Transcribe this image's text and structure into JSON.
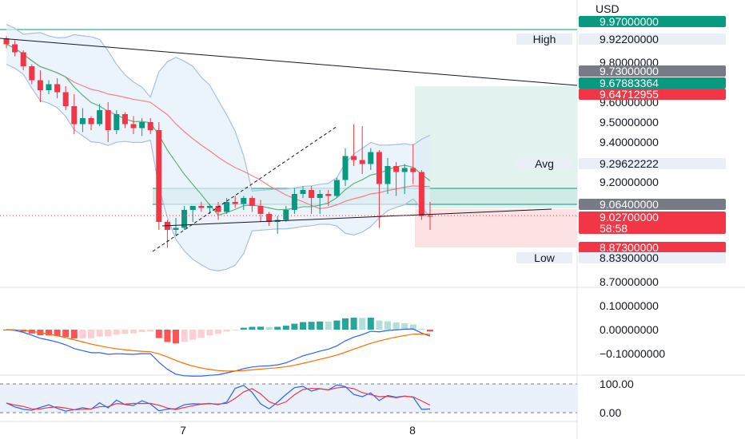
{
  "axis": {
    "currency": "USD",
    "price_ticks": [
      "9.80000000",
      "9.60000000",
      "9.50000000",
      "9.40000000",
      "9.20000000",
      "8.70000000"
    ],
    "price_tick_values": [
      9.8,
      9.6,
      9.5,
      9.4,
      9.2,
      8.7
    ],
    "macd_ticks": [
      "0.10000000",
      "0.00000000",
      "−0.10000000"
    ],
    "macd_tick_values": [
      0.1,
      0.0,
      -0.1
    ],
    "stoch_ticks": [
      "100.00",
      "0.00"
    ],
    "stoch_tick_values": [
      100,
      0
    ],
    "time_ticks": [
      "7",
      "8"
    ]
  },
  "price_labels": [
    {
      "id": "top",
      "value": 9.97,
      "text": "9.97000000",
      "color": "#089981",
      "text_color": "#ffffff"
    },
    {
      "id": "high",
      "value": 9.922,
      "text": "9.92200000",
      "tag": "High",
      "color": "#e9eef7",
      "text_color": "#131722"
    },
    {
      "id": "grey1",
      "value": 9.73,
      "text": "9.73000000",
      "color": "#787b86",
      "text_color": "#ffffff"
    },
    {
      "id": "green",
      "value": 9.67883364,
      "text": "9.67883364",
      "color": "#089981",
      "text_color": "#ffffff"
    },
    {
      "id": "red1",
      "value": 9.64712955,
      "text": "9.64712955",
      "color": "#f23645",
      "text_color": "#ffffff"
    },
    {
      "id": "avg",
      "value": 9.29622222,
      "text": "9.29622222",
      "tag": "Avg",
      "color": "#e9eef7",
      "text_color": "#131722"
    },
    {
      "id": "grey2",
      "value": 9.064,
      "text": "9.06400000",
      "color": "#787b86",
      "text_color": "#ffffff"
    },
    {
      "id": "current",
      "value": 9.027,
      "text": "9.02700000",
      "sub": "58:58",
      "color": "#f23645",
      "text_color": "#ffffff"
    },
    {
      "id": "red2",
      "value": 8.873,
      "text": "8.87300000",
      "color": "#f23645",
      "text_color": "#ffffff"
    },
    {
      "id": "low",
      "value": 8.839,
      "text": "8.83900000",
      "tag": "Low",
      "color": "#e9eef7",
      "text_color": "#131722"
    }
  ],
  "colors": {
    "up": "#089981",
    "down": "#f23645",
    "band_fill": "#e3eef9",
    "band_line": "#a7bfe3",
    "ma_red": "#f5808a",
    "ma_green": "#5db37e",
    "macd_line": "#2962ff",
    "signal_line": "#ff6d00",
    "hist_up_strong": "#26a69a",
    "hist_up_weak": "#b2dfdb",
    "hist_dn_strong": "#ff5252",
    "hist_dn_weak": "#ffcdd2",
    "stoch_k": "#2962ff",
    "stoch_d": "#f23645",
    "stoch_band": "#eaf1fb",
    "grid": "#e0e3eb"
  },
  "chart_data": {
    "type": "candlestick",
    "ohlc": [
      [
        9.92,
        9.93,
        9.87,
        9.89
      ],
      [
        9.89,
        9.91,
        9.83,
        9.85
      ],
      [
        9.85,
        9.86,
        9.76,
        9.78
      ],
      [
        9.78,
        9.79,
        9.69,
        9.71
      ],
      [
        9.71,
        9.76,
        9.6,
        9.66
      ],
      [
        9.66,
        9.71,
        9.64,
        9.69
      ],
      [
        9.69,
        9.72,
        9.62,
        9.65
      ],
      [
        9.65,
        9.68,
        9.56,
        9.58
      ],
      [
        9.58,
        9.64,
        9.44,
        9.49
      ],
      [
        9.49,
        9.57,
        9.45,
        9.52
      ],
      [
        9.52,
        9.53,
        9.46,
        9.49
      ],
      [
        9.49,
        9.59,
        9.48,
        9.56
      ],
      [
        9.56,
        9.6,
        9.4,
        9.46
      ],
      [
        9.46,
        9.56,
        9.44,
        9.54
      ],
      [
        9.54,
        9.55,
        9.47,
        9.49
      ],
      [
        9.49,
        9.53,
        9.44,
        9.47
      ],
      [
        9.47,
        9.52,
        9.43,
        9.5
      ],
      [
        9.5,
        9.52,
        9.44,
        9.46
      ],
      [
        9.46,
        9.5,
        8.96,
        9.0
      ],
      [
        9.0,
        9.01,
        8.87,
        8.96
      ],
      [
        8.96,
        9.02,
        8.93,
        8.97
      ],
      [
        8.97,
        9.08,
        8.96,
        9.06
      ],
      [
        9.06,
        9.08,
        9.0,
        9.08
      ],
      [
        9.08,
        9.1,
        9.05,
        9.07
      ],
      [
        9.07,
        9.09,
        9.04,
        9.08
      ],
      [
        9.08,
        9.1,
        9.01,
        9.05
      ],
      [
        9.05,
        9.12,
        9.04,
        9.1
      ],
      [
        9.1,
        9.13,
        9.07,
        9.09
      ],
      [
        9.09,
        9.13,
        9.06,
        9.12
      ],
      [
        9.12,
        9.13,
        9.05,
        9.08
      ],
      [
        9.08,
        9.11,
        9.0,
        9.04
      ],
      [
        9.04,
        9.05,
        8.98,
        9.0
      ],
      [
        9.0,
        9.03,
        8.94,
        9.01
      ],
      [
        9.01,
        9.08,
        9.0,
        9.06
      ],
      [
        9.06,
        9.17,
        9.04,
        9.14
      ],
      [
        9.14,
        9.18,
        9.12,
        9.16
      ],
      [
        9.16,
        9.18,
        9.04,
        9.12
      ],
      [
        9.12,
        9.16,
        9.04,
        9.14
      ],
      [
        9.14,
        9.16,
        9.08,
        9.13
      ],
      [
        9.13,
        9.22,
        9.12,
        9.21
      ],
      [
        9.21,
        9.37,
        9.18,
        9.33
      ],
      [
        9.33,
        9.49,
        9.28,
        9.31
      ],
      [
        9.31,
        9.48,
        9.24,
        9.29
      ],
      [
        9.29,
        9.37,
        9.26,
        9.35
      ],
      [
        9.35,
        9.36,
        8.97,
        9.19
      ],
      [
        9.19,
        9.32,
        9.14,
        9.28
      ],
      [
        9.28,
        9.3,
        9.13,
        9.25
      ],
      [
        9.25,
        9.29,
        9.14,
        9.27
      ],
      [
        9.27,
        9.39,
        9.19,
        9.25
      ],
      [
        9.25,
        9.26,
        9.01,
        9.03
      ],
      [
        9.03,
        9.1,
        8.96,
        9.027
      ]
    ],
    "indicators": {
      "bollinger": "upper/lower band with fill",
      "moving_averages": [
        "red",
        "green"
      ]
    }
  }
}
